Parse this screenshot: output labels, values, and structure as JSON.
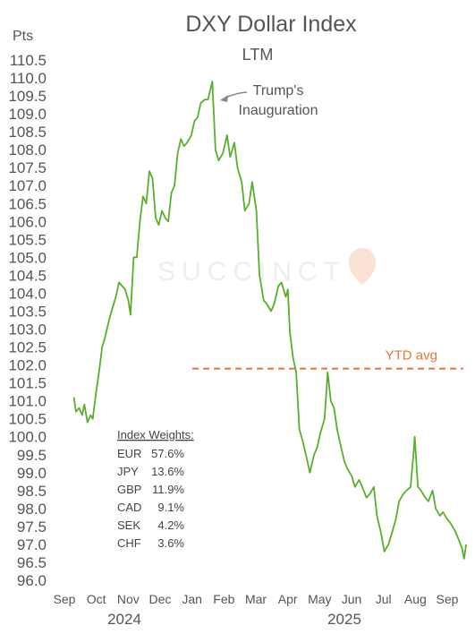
{
  "chart_data": {
    "type": "line",
    "title": "DXY Dollar Index",
    "subtitle": "LTM",
    "ylabel": "Pts",
    "ylim": [
      96.0,
      110.5
    ],
    "yticks": [
      "110.5",
      "110.0",
      "109.5",
      "109.0",
      "108.5",
      "108.0",
      "107.5",
      "107.0",
      "106.5",
      "106.0",
      "105.5",
      "105.0",
      "104.5",
      "104.0",
      "103.5",
      "103.0",
      "102.5",
      "102.0",
      "101.5",
      "101.0",
      "100.5",
      "100.0",
      "99.5",
      "99.0",
      "98.5",
      "98.0",
      "97.5",
      "97.0",
      "96.5",
      "96.0"
    ],
    "xticks": [
      "Sep",
      "Oct",
      "Nov",
      "Dec",
      "Jan",
      "Feb",
      "Mar",
      "Apr",
      "May",
      "Jun",
      "Jul",
      "Aug",
      "Sep"
    ],
    "years": [
      "2024",
      "2025"
    ],
    "series": [
      {
        "color": "#5AAE2E",
        "x": [
          "2024-09-10",
          "2024-09-12",
          "2024-09-15",
          "2024-09-18",
          "2024-09-20",
          "2024-09-23",
          "2024-09-26",
          "2024-09-28",
          "2024-10-01",
          "2024-10-04",
          "2024-10-07",
          "2024-10-10",
          "2024-10-14",
          "2024-10-17",
          "2024-10-20",
          "2024-10-23",
          "2024-10-26",
          "2024-10-29",
          "2024-11-01",
          "2024-11-03",
          "2024-11-06",
          "2024-11-09",
          "2024-11-12",
          "2024-11-15",
          "2024-11-18",
          "2024-11-21",
          "2024-11-24",
          "2024-11-27",
          "2024-11-30",
          "2024-12-03",
          "2024-12-06",
          "2024-12-09",
          "2024-12-12",
          "2024-12-15",
          "2024-12-18",
          "2024-12-21",
          "2024-12-24",
          "2024-12-27",
          "2024-12-31",
          "2025-01-03",
          "2025-01-06",
          "2025-01-09",
          "2025-01-13",
          "2025-01-16",
          "2025-01-20",
          "2025-01-23",
          "2025-01-26",
          "2025-01-30",
          "2025-02-03",
          "2025-02-06",
          "2025-02-10",
          "2025-02-13",
          "2025-02-17",
          "2025-02-20",
          "2025-02-24",
          "2025-02-27",
          "2025-03-03",
          "2025-03-06",
          "2025-03-10",
          "2025-03-13",
          "2025-03-17",
          "2025-03-20",
          "2025-03-24",
          "2025-03-27",
          "2025-03-31",
          "2025-04-02",
          "2025-04-04",
          "2025-04-07",
          "2025-04-10",
          "2025-04-13",
          "2025-04-16",
          "2025-04-20",
          "2025-04-23",
          "2025-04-27",
          "2025-04-30",
          "2025-05-03",
          "2025-05-07",
          "2025-05-10",
          "2025-05-13",
          "2025-05-16",
          "2025-05-19",
          "2025-05-22",
          "2025-05-26",
          "2025-05-29",
          "2025-06-02",
          "2025-06-05",
          "2025-06-09",
          "2025-06-12",
          "2025-06-16",
          "2025-06-19",
          "2025-06-23",
          "2025-06-26",
          "2025-06-30",
          "2025-07-03",
          "2025-07-07",
          "2025-07-10",
          "2025-07-14",
          "2025-07-17",
          "2025-07-21",
          "2025-07-24",
          "2025-07-28",
          "2025-07-31",
          "2025-08-01",
          "2025-08-04",
          "2025-08-07",
          "2025-08-11",
          "2025-08-14",
          "2025-08-18",
          "2025-08-21",
          "2025-08-25",
          "2025-08-28",
          "2025-09-01",
          "2025-09-04",
          "2025-09-08",
          "2025-09-11",
          "2025-09-15",
          "2025-09-17",
          "2025-09-19"
        ],
        "y": [
          101.1,
          100.7,
          100.8,
          100.6,
          100.9,
          100.4,
          100.6,
          100.5,
          101.2,
          101.8,
          102.5,
          102.8,
          103.3,
          103.6,
          103.9,
          104.3,
          104.2,
          104.1,
          103.8,
          103.4,
          105.0,
          105.0,
          106.0,
          106.7,
          106.5,
          107.4,
          107.2,
          106.1,
          105.9,
          106.3,
          106.1,
          106.0,
          106.8,
          107.0,
          107.9,
          108.3,
          108.1,
          108.2,
          108.4,
          108.8,
          108.9,
          109.3,
          109.4,
          109.4,
          109.9,
          108.0,
          107.7,
          107.9,
          108.4,
          107.8,
          108.2,
          107.5,
          107.1,
          106.3,
          106.5,
          107.1,
          106.3,
          104.5,
          103.8,
          103.7,
          103.5,
          103.7,
          104.2,
          104.3,
          103.9,
          104.1,
          102.9,
          102.2,
          101.8,
          100.2,
          99.9,
          99.4,
          99.0,
          99.5,
          99.7,
          100.1,
          100.5,
          101.8,
          101.0,
          100.8,
          100.2,
          99.8,
          99.3,
          99.1,
          98.9,
          98.6,
          98.8,
          98.6,
          98.3,
          98.4,
          98.6,
          97.8,
          97.3,
          96.8,
          97.0,
          97.3,
          97.7,
          98.2,
          98.4,
          98.5,
          98.6,
          99.6,
          100.0,
          98.6,
          98.5,
          98.3,
          98.2,
          98.5,
          98.0,
          97.8,
          97.9,
          97.7,
          97.6,
          97.4,
          97.2,
          96.9,
          96.6,
          97.0
        ]
      }
    ],
    "annotations": {
      "inauguration_line1": "Trump's",
      "inauguration_line2": "Inauguration",
      "ytd_label": "YTD avg",
      "ytd_value": 101.9,
      "ytd_start": "2025-01-01",
      "inauguration_date": "2025-01-20"
    },
    "weights": {
      "heading": "Index Weights:",
      "rows": [
        {
          "code": "EUR",
          "pct": "57.6%"
        },
        {
          "code": "JPY",
          "pct": "13.6%"
        },
        {
          "code": "GBP",
          "pct": "11.9%"
        },
        {
          "code": "CAD",
          "pct": "9.1%"
        },
        {
          "code": "SEK",
          "pct": "4.2%"
        },
        {
          "code": "CHF",
          "pct": "3.6%"
        }
      ]
    },
    "watermark": "SUCCINCT",
    "colors": {
      "line": "#5AAE2E",
      "ytd": "#E8743B",
      "text": "#555555",
      "watermark": "#eeeeee"
    },
    "grid": false,
    "legend": "none"
  }
}
